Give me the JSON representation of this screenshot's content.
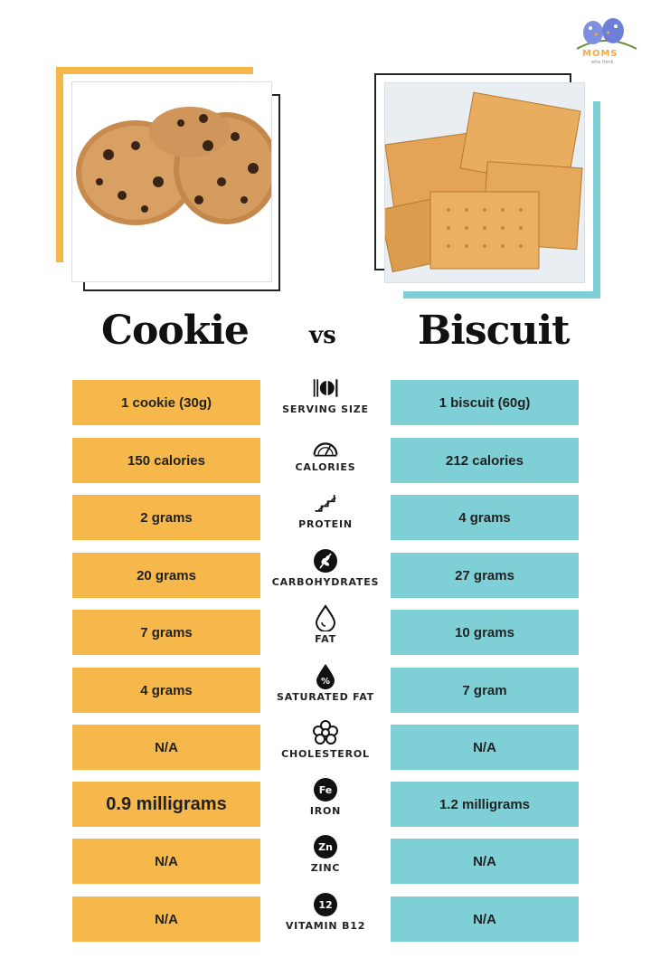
{
  "brand": {
    "logo_text": "MOMS",
    "logo_sub": "who think"
  },
  "left_title": "Cookie",
  "vs_text": "vs",
  "right_title": "Biscuit",
  "colors": {
    "cookie": "#f6b84a",
    "biscuit": "#7fd0d6"
  },
  "rows": [
    {
      "label": "SERVING SIZE",
      "cookie": "1 cookie (30g)",
      "biscuit": "1 biscuit (60g)",
      "icon": "utensils-plate-icon"
    },
    {
      "label": "CALORIES",
      "cookie": "150 calories",
      "biscuit": "212 calories",
      "icon": "gauge-icon"
    },
    {
      "label": "PROTEIN",
      "cookie": "2 grams",
      "biscuit": "4 grams",
      "icon": "protein-helix-icon"
    },
    {
      "label": "CARBOHYDRATES",
      "cookie": "20 grams",
      "biscuit": "27 grams",
      "icon": "wheat-icon"
    },
    {
      "label": "FAT",
      "cookie": "7 grams",
      "biscuit": "10 grams",
      "icon": "oil-drop-icon"
    },
    {
      "label": "SATURATED FAT",
      "cookie": "4 grams",
      "biscuit": "7 gram",
      "icon": "percent-drop-icon"
    },
    {
      "label": "CHOLESTEROL",
      "cookie": "N/A",
      "biscuit": "N/A",
      "icon": "molecule-icon"
    },
    {
      "label": "IRON",
      "cookie": "0.9 milligrams",
      "biscuit": "1.2 milligrams",
      "icon": "iron-badge-icon",
      "badge": "Fe"
    },
    {
      "label": "ZINC",
      "cookie": "N/A",
      "biscuit": "N/A",
      "icon": "zinc-badge-icon",
      "badge": "Zn"
    },
    {
      "label": "VITAMIN B12",
      "cookie": "N/A",
      "biscuit": "N/A",
      "icon": "b12-badge-icon",
      "badge": "12"
    }
  ]
}
